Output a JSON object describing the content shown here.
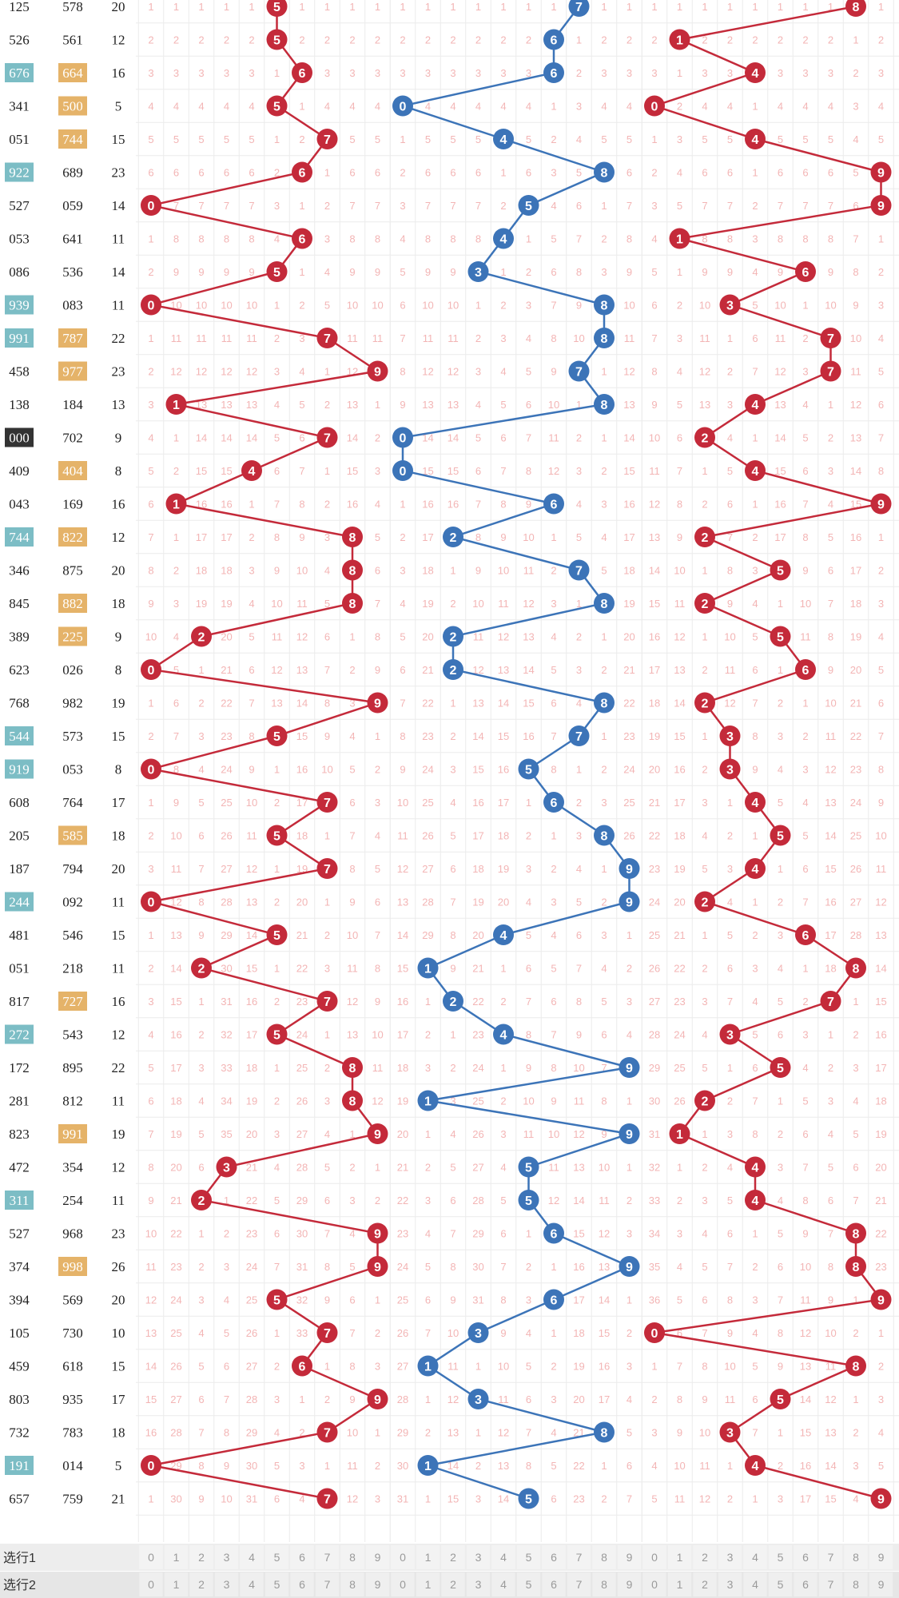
{
  "colors": {
    "red": "#c42a3a",
    "blue": "#3c74b8",
    "teal": "#7cbdc5",
    "orange": "#e5b369",
    "dark": "#333333",
    "grid": "#ececec",
    "missing": "#f3b5b5"
  },
  "footer": {
    "row1_label": "选行1",
    "row2_label": "选行2",
    "digits": [
      "0",
      "1",
      "2",
      "3",
      "4",
      "5",
      "6",
      "7",
      "8",
      "9"
    ]
  },
  "chart_data": {
    "type": "table",
    "zones": [
      {
        "name": "",
        "color": "red"
      },
      {
        "name": "",
        "color": "blue"
      },
      {
        "name": "",
        "color": "red"
      }
    ],
    "rows": [
      {
        "a": "125",
        "a_tag": "",
        "b": "578",
        "b_tag": "",
        "sum": "20",
        "d": [
          5,
          7,
          8
        ]
      },
      {
        "a": "526",
        "a_tag": "",
        "b": "561",
        "b_tag": "",
        "sum": "12",
        "d": [
          5,
          6,
          1
        ]
      },
      {
        "a": "676",
        "a_tag": "teal",
        "b": "664",
        "b_tag": "orange",
        "sum": "16",
        "d": [
          6,
          6,
          4
        ]
      },
      {
        "a": "341",
        "a_tag": "",
        "b": "500",
        "b_tag": "orange",
        "sum": "5",
        "d": [
          5,
          0,
          0
        ]
      },
      {
        "a": "051",
        "a_tag": "",
        "b": "744",
        "b_tag": "orange",
        "sum": "15",
        "d": [
          7,
          4,
          4
        ]
      },
      {
        "a": "922",
        "a_tag": "teal",
        "b": "689",
        "b_tag": "",
        "sum": "23",
        "d": [
          6,
          8,
          9
        ]
      },
      {
        "a": "527",
        "a_tag": "",
        "b": "059",
        "b_tag": "",
        "sum": "14",
        "d": [
          0,
          5,
          9
        ]
      },
      {
        "a": "053",
        "a_tag": "",
        "b": "641",
        "b_tag": "",
        "sum": "11",
        "d": [
          6,
          4,
          1
        ]
      },
      {
        "a": "086",
        "a_tag": "",
        "b": "536",
        "b_tag": "",
        "sum": "14",
        "d": [
          5,
          3,
          6
        ]
      },
      {
        "a": "939",
        "a_tag": "teal",
        "b": "083",
        "b_tag": "",
        "sum": "11",
        "d": [
          0,
          8,
          3
        ]
      },
      {
        "a": "991",
        "a_tag": "teal",
        "b": "787",
        "b_tag": "orange",
        "sum": "22",
        "d": [
          7,
          8,
          7
        ]
      },
      {
        "a": "458",
        "a_tag": "",
        "b": "977",
        "b_tag": "orange",
        "sum": "23",
        "d": [
          9,
          7,
          7
        ]
      },
      {
        "a": "138",
        "a_tag": "",
        "b": "184",
        "b_tag": "",
        "sum": "13",
        "d": [
          1,
          8,
          4
        ]
      },
      {
        "a": "000",
        "a_tag": "dark",
        "b": "702",
        "b_tag": "",
        "sum": "9",
        "d": [
          7,
          0,
          2
        ]
      },
      {
        "a": "409",
        "a_tag": "",
        "b": "404",
        "b_tag": "orange",
        "sum": "8",
        "d": [
          4,
          0,
          4
        ]
      },
      {
        "a": "043",
        "a_tag": "",
        "b": "169",
        "b_tag": "",
        "sum": "16",
        "d": [
          1,
          6,
          9
        ]
      },
      {
        "a": "744",
        "a_tag": "teal",
        "b": "822",
        "b_tag": "orange",
        "sum": "12",
        "d": [
          8,
          2,
          2
        ]
      },
      {
        "a": "346",
        "a_tag": "",
        "b": "875",
        "b_tag": "",
        "sum": "20",
        "d": [
          8,
          7,
          5
        ]
      },
      {
        "a": "845",
        "a_tag": "",
        "b": "882",
        "b_tag": "orange",
        "sum": "18",
        "d": [
          8,
          8,
          2
        ]
      },
      {
        "a": "389",
        "a_tag": "",
        "b": "225",
        "b_tag": "orange",
        "sum": "9",
        "d": [
          2,
          2,
          5
        ]
      },
      {
        "a": "623",
        "a_tag": "",
        "b": "026",
        "b_tag": "",
        "sum": "8",
        "d": [
          0,
          2,
          6
        ]
      },
      {
        "a": "768",
        "a_tag": "",
        "b": "982",
        "b_tag": "",
        "sum": "19",
        "d": [
          9,
          8,
          2
        ]
      },
      {
        "a": "544",
        "a_tag": "teal",
        "b": "573",
        "b_tag": "",
        "sum": "15",
        "d": [
          5,
          7,
          3
        ]
      },
      {
        "a": "919",
        "a_tag": "teal",
        "b": "053",
        "b_tag": "",
        "sum": "8",
        "d": [
          0,
          5,
          3
        ]
      },
      {
        "a": "608",
        "a_tag": "",
        "b": "764",
        "b_tag": "",
        "sum": "17",
        "d": [
          7,
          6,
          4
        ]
      },
      {
        "a": "205",
        "a_tag": "",
        "b": "585",
        "b_tag": "orange",
        "sum": "18",
        "d": [
          5,
          8,
          5
        ]
      },
      {
        "a": "187",
        "a_tag": "",
        "b": "794",
        "b_tag": "",
        "sum": "20",
        "d": [
          7,
          9,
          4
        ]
      },
      {
        "a": "244",
        "a_tag": "teal",
        "b": "092",
        "b_tag": "",
        "sum": "11",
        "d": [
          0,
          9,
          2
        ]
      },
      {
        "a": "481",
        "a_tag": "",
        "b": "546",
        "b_tag": "",
        "sum": "15",
        "d": [
          5,
          4,
          6
        ]
      },
      {
        "a": "051",
        "a_tag": "",
        "b": "218",
        "b_tag": "",
        "sum": "11",
        "d": [
          2,
          1,
          8
        ]
      },
      {
        "a": "817",
        "a_tag": "",
        "b": "727",
        "b_tag": "orange",
        "sum": "16",
        "d": [
          7,
          2,
          7
        ]
      },
      {
        "a": "272",
        "a_tag": "teal",
        "b": "543",
        "b_tag": "",
        "sum": "12",
        "d": [
          5,
          4,
          3
        ]
      },
      {
        "a": "172",
        "a_tag": "",
        "b": "895",
        "b_tag": "",
        "sum": "22",
        "d": [
          8,
          9,
          5
        ]
      },
      {
        "a": "281",
        "a_tag": "",
        "b": "812",
        "b_tag": "",
        "sum": "11",
        "d": [
          8,
          1,
          2
        ]
      },
      {
        "a": "823",
        "a_tag": "",
        "b": "991",
        "b_tag": "orange",
        "sum": "19",
        "d": [
          9,
          9,
          1
        ]
      },
      {
        "a": "472",
        "a_tag": "",
        "b": "354",
        "b_tag": "",
        "sum": "12",
        "d": [
          3,
          5,
          4
        ]
      },
      {
        "a": "311",
        "a_tag": "teal",
        "b": "254",
        "b_tag": "",
        "sum": "11",
        "d": [
          2,
          5,
          4
        ]
      },
      {
        "a": "527",
        "a_tag": "",
        "b": "968",
        "b_tag": "",
        "sum": "23",
        "d": [
          9,
          6,
          8
        ]
      },
      {
        "a": "374",
        "a_tag": "",
        "b": "998",
        "b_tag": "orange",
        "sum": "26",
        "d": [
          9,
          9,
          8
        ]
      },
      {
        "a": "394",
        "a_tag": "",
        "b": "569",
        "b_tag": "",
        "sum": "20",
        "d": [
          5,
          6,
          9
        ]
      },
      {
        "a": "105",
        "a_tag": "",
        "b": "730",
        "b_tag": "",
        "sum": "10",
        "d": [
          7,
          3,
          0
        ]
      },
      {
        "a": "459",
        "a_tag": "",
        "b": "618",
        "b_tag": "",
        "sum": "15",
        "d": [
          6,
          1,
          8
        ]
      },
      {
        "a": "803",
        "a_tag": "",
        "b": "935",
        "b_tag": "",
        "sum": "17",
        "d": [
          9,
          3,
          5
        ]
      },
      {
        "a": "732",
        "a_tag": "",
        "b": "783",
        "b_tag": "",
        "sum": "18",
        "d": [
          7,
          8,
          3
        ]
      },
      {
        "a": "191",
        "a_tag": "teal",
        "b": "014",
        "b_tag": "",
        "sum": "5",
        "d": [
          0,
          1,
          4
        ]
      },
      {
        "a": "657",
        "a_tag": "",
        "b": "759",
        "b_tag": "",
        "sum": "21",
        "d": [
          7,
          5,
          9
        ]
      }
    ]
  }
}
